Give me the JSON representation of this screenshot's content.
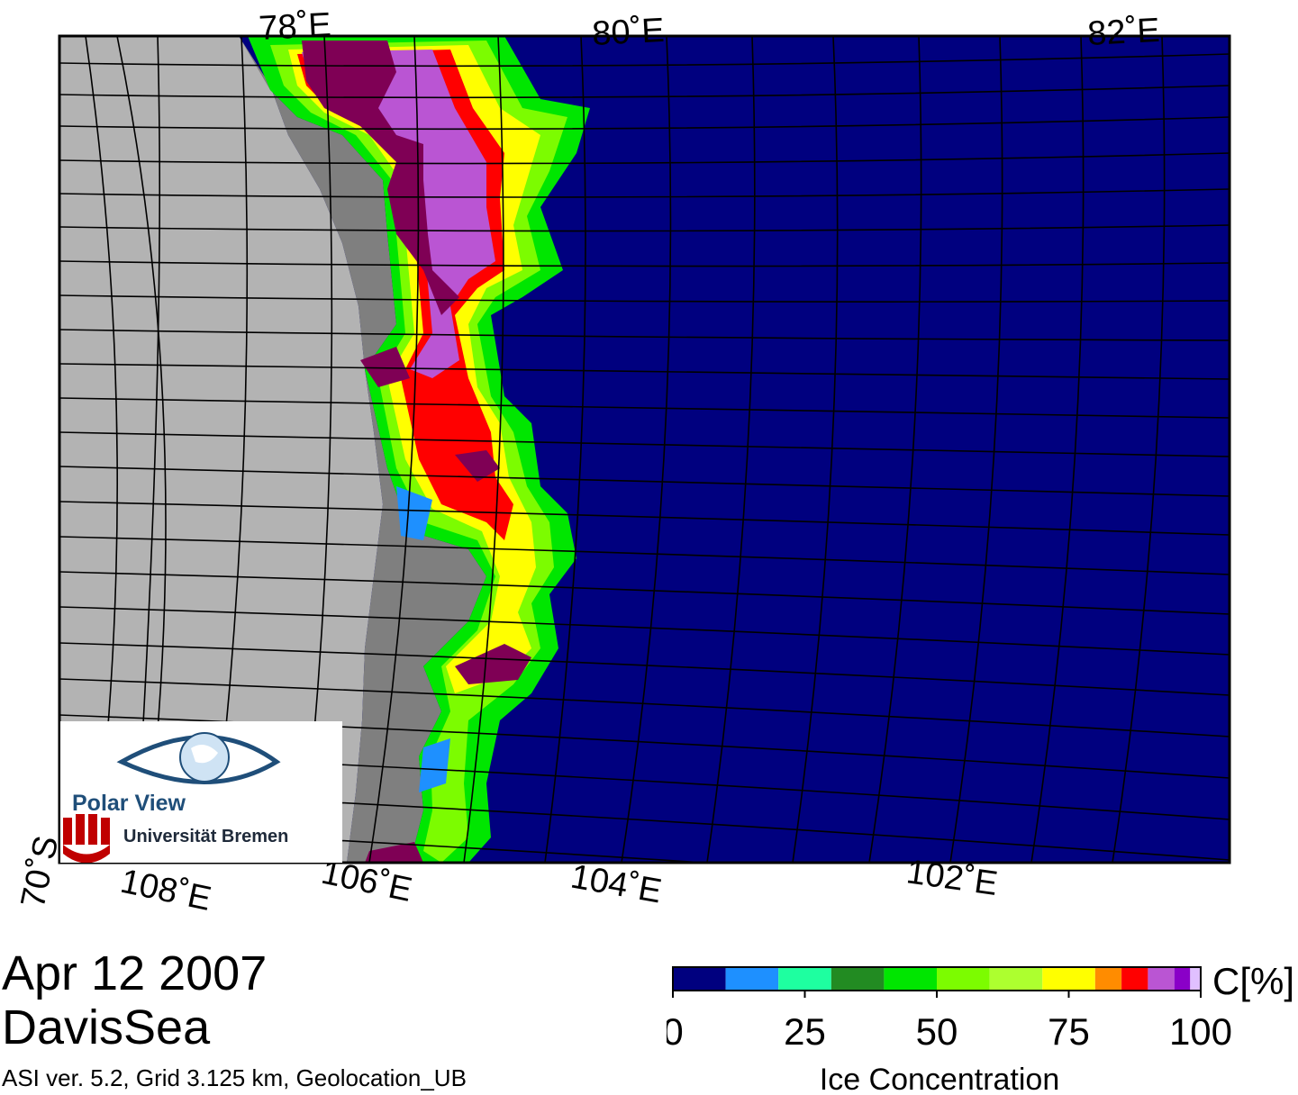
{
  "header": {
    "date": "Apr 12 2007",
    "region": "DavisSea",
    "info": "ASI ver. 5.2,  Grid 3.125 km, Geolocation_UB"
  },
  "map": {
    "top_longitude_labels": [
      "78˚E",
      "80˚E",
      "82˚E"
    ],
    "bottom_longitude_labels": [
      "108˚E",
      "106˚E",
      "104˚E",
      "102˚E"
    ],
    "latitude_labels": [
      "70˚S"
    ],
    "colors": {
      "frame": "#000000",
      "land_ice_sheet": "#b3b3b3",
      "land_coast": "#7f7f7f",
      "open_water": "#00007f",
      "graticule": "#000000"
    }
  },
  "logo": {
    "name": "Polar View",
    "institution": "Universität Bremen"
  },
  "colorbar": {
    "unit_label": "C[%]",
    "title": "Ice Concentration",
    "ticks": [
      "0",
      "25",
      "50",
      "75",
      "100"
    ],
    "range": [
      0,
      100
    ],
    "colors": [
      "#00007f",
      "#1e90ff",
      "#1effa0",
      "#228b22",
      "#00e600",
      "#7cfc00",
      "#adff2f",
      "#ffff00",
      "#ff8c00",
      "#ff0000",
      "#ba55d3",
      "#8a00c8",
      "#e0c0ff"
    ],
    "bounds": [
      0,
      10,
      20,
      30,
      40,
      50,
      60,
      70,
      80,
      85,
      90,
      95,
      98,
      100
    ]
  }
}
